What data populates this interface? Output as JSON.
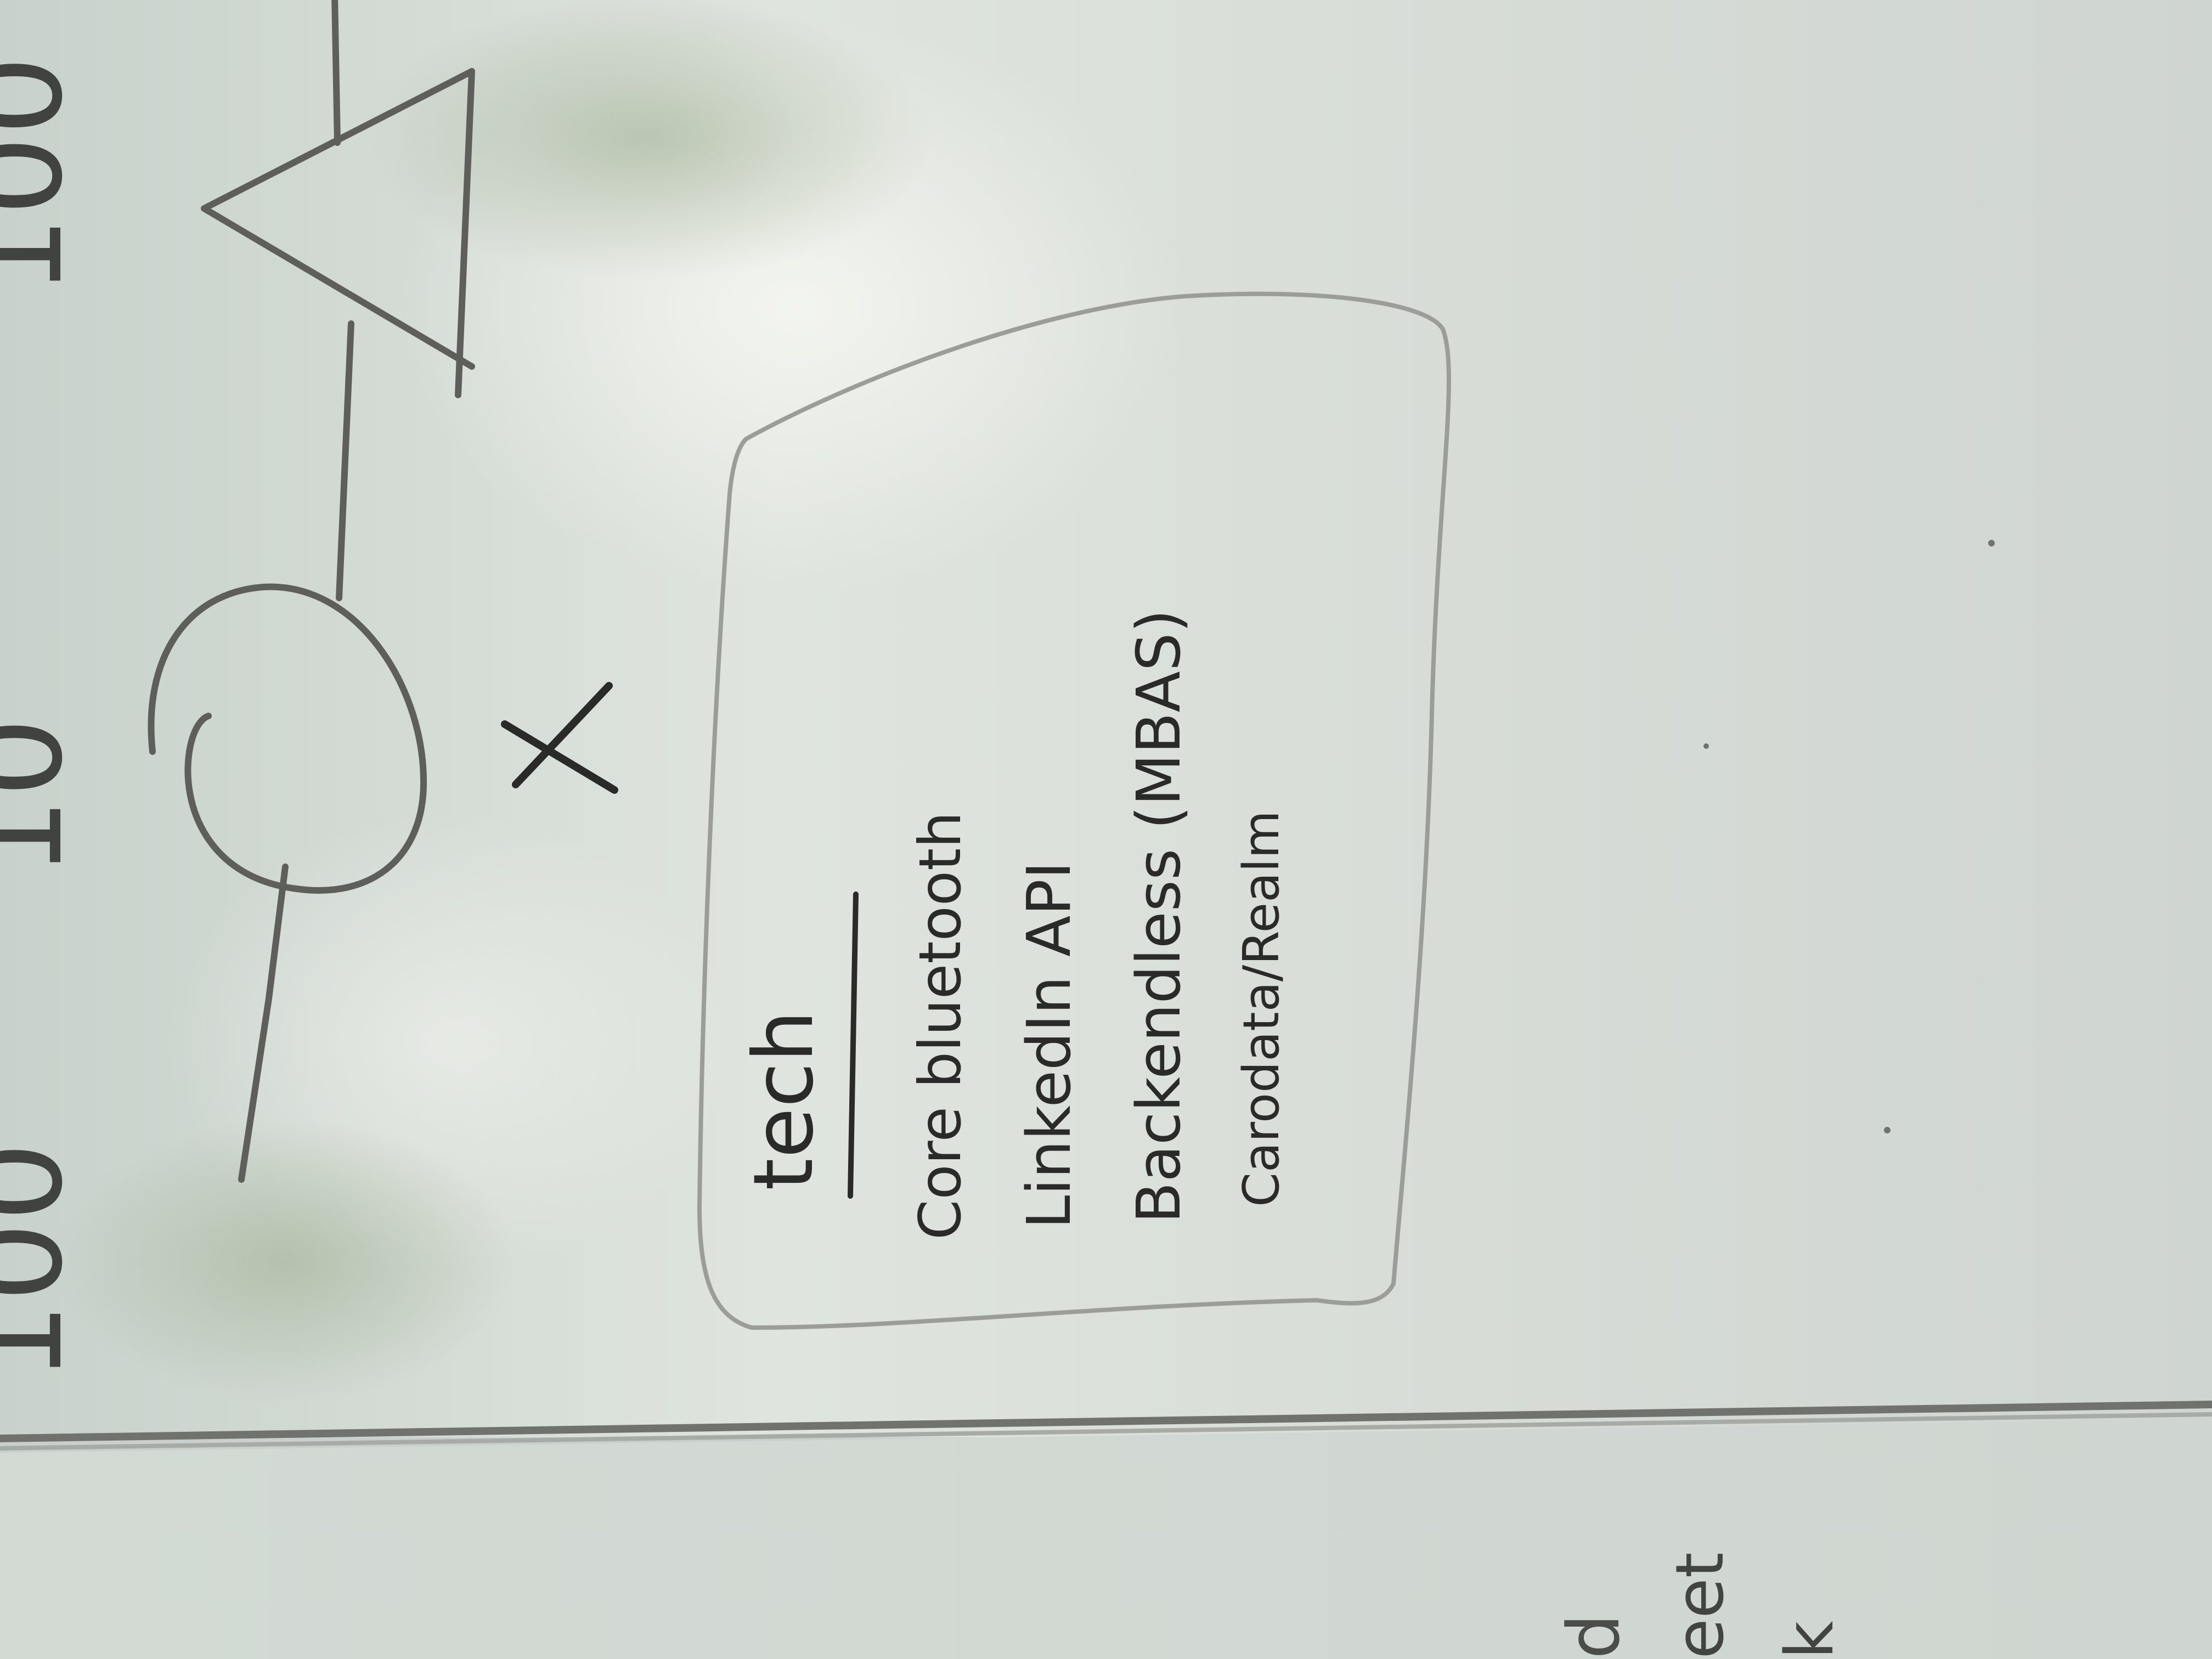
{
  "whiteboard": {
    "box_heading": "tech",
    "box_lines": [
      "Core bluetooth",
      "LinkedIn API",
      "Backendless (MBAS)",
      "Carodata/Realm"
    ],
    "top_numbers": [
      "100",
      "10",
      "100"
    ],
    "lower_panel_fragments": [
      "d",
      "eet",
      "k"
    ]
  },
  "colors": {
    "board": "#d5dbd6",
    "glare": "#eef1ec",
    "marker": "#2a2b28",
    "sketch": "#5e5f5a",
    "frame": "#6f726d"
  }
}
